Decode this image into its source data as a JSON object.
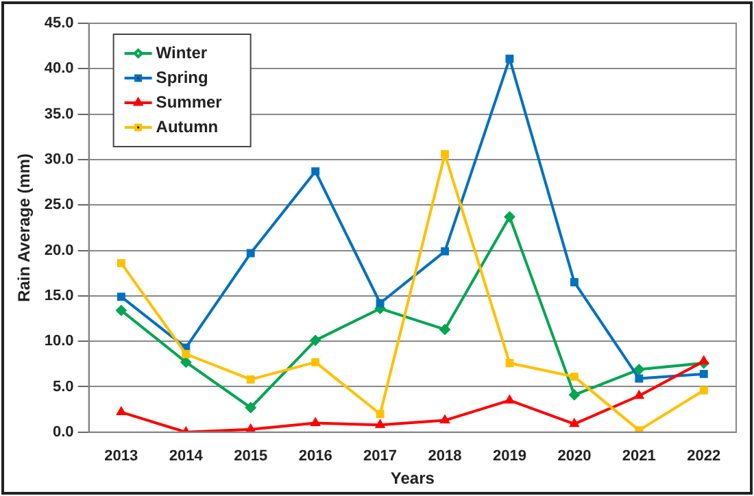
{
  "chart_data": {
    "type": "line",
    "xlabel": "Years",
    "ylabel": "Rain Average (mm)",
    "categories": [
      "2013",
      "2014",
      "2015",
      "2016",
      "2017",
      "2018",
      "2019",
      "2020",
      "2021",
      "2022"
    ],
    "series": [
      {
        "name": "Winter",
        "color": "#00a651",
        "marker": "diamond",
        "values": [
          13.4,
          7.7,
          2.7,
          10.1,
          13.6,
          11.3,
          23.7,
          4.1,
          6.9,
          7.6
        ]
      },
      {
        "name": "Spring",
        "color": "#0070c0",
        "marker": "square",
        "values": [
          14.9,
          9.3,
          19.7,
          28.7,
          14.2,
          19.9,
          41.1,
          16.5,
          5.9,
          6.4
        ]
      },
      {
        "name": "Summer",
        "color": "#ff0000",
        "marker": "triangle",
        "values": [
          2.2,
          0.0,
          0.3,
          1.0,
          0.8,
          1.3,
          3.5,
          0.9,
          4.0,
          7.8
        ]
      },
      {
        "name": "Autumn",
        "color": "#ffc000",
        "marker": "square",
        "values": [
          18.6,
          8.6,
          5.8,
          7.7,
          2.0,
          30.6,
          7.6,
          6.1,
          0.2,
          4.6
        ]
      }
    ],
    "ylim": [
      0,
      45
    ],
    "yticks": [
      {
        "value": 0,
        "label": "0.0"
      },
      {
        "value": 5,
        "label": "5.0"
      },
      {
        "value": 10,
        "label": "10.0"
      },
      {
        "value": 15,
        "label": "15.0"
      },
      {
        "value": 20,
        "label": "20.0"
      },
      {
        "value": 25,
        "label": "25.0"
      },
      {
        "value": 30,
        "label": "30.0"
      },
      {
        "value": 35,
        "label": "35.0"
      },
      {
        "value": 40,
        "label": "40.0"
      },
      {
        "value": 45,
        "label": "45.0"
      }
    ],
    "grid": "y",
    "legend": "top left",
    "line_style": "solid"
  }
}
